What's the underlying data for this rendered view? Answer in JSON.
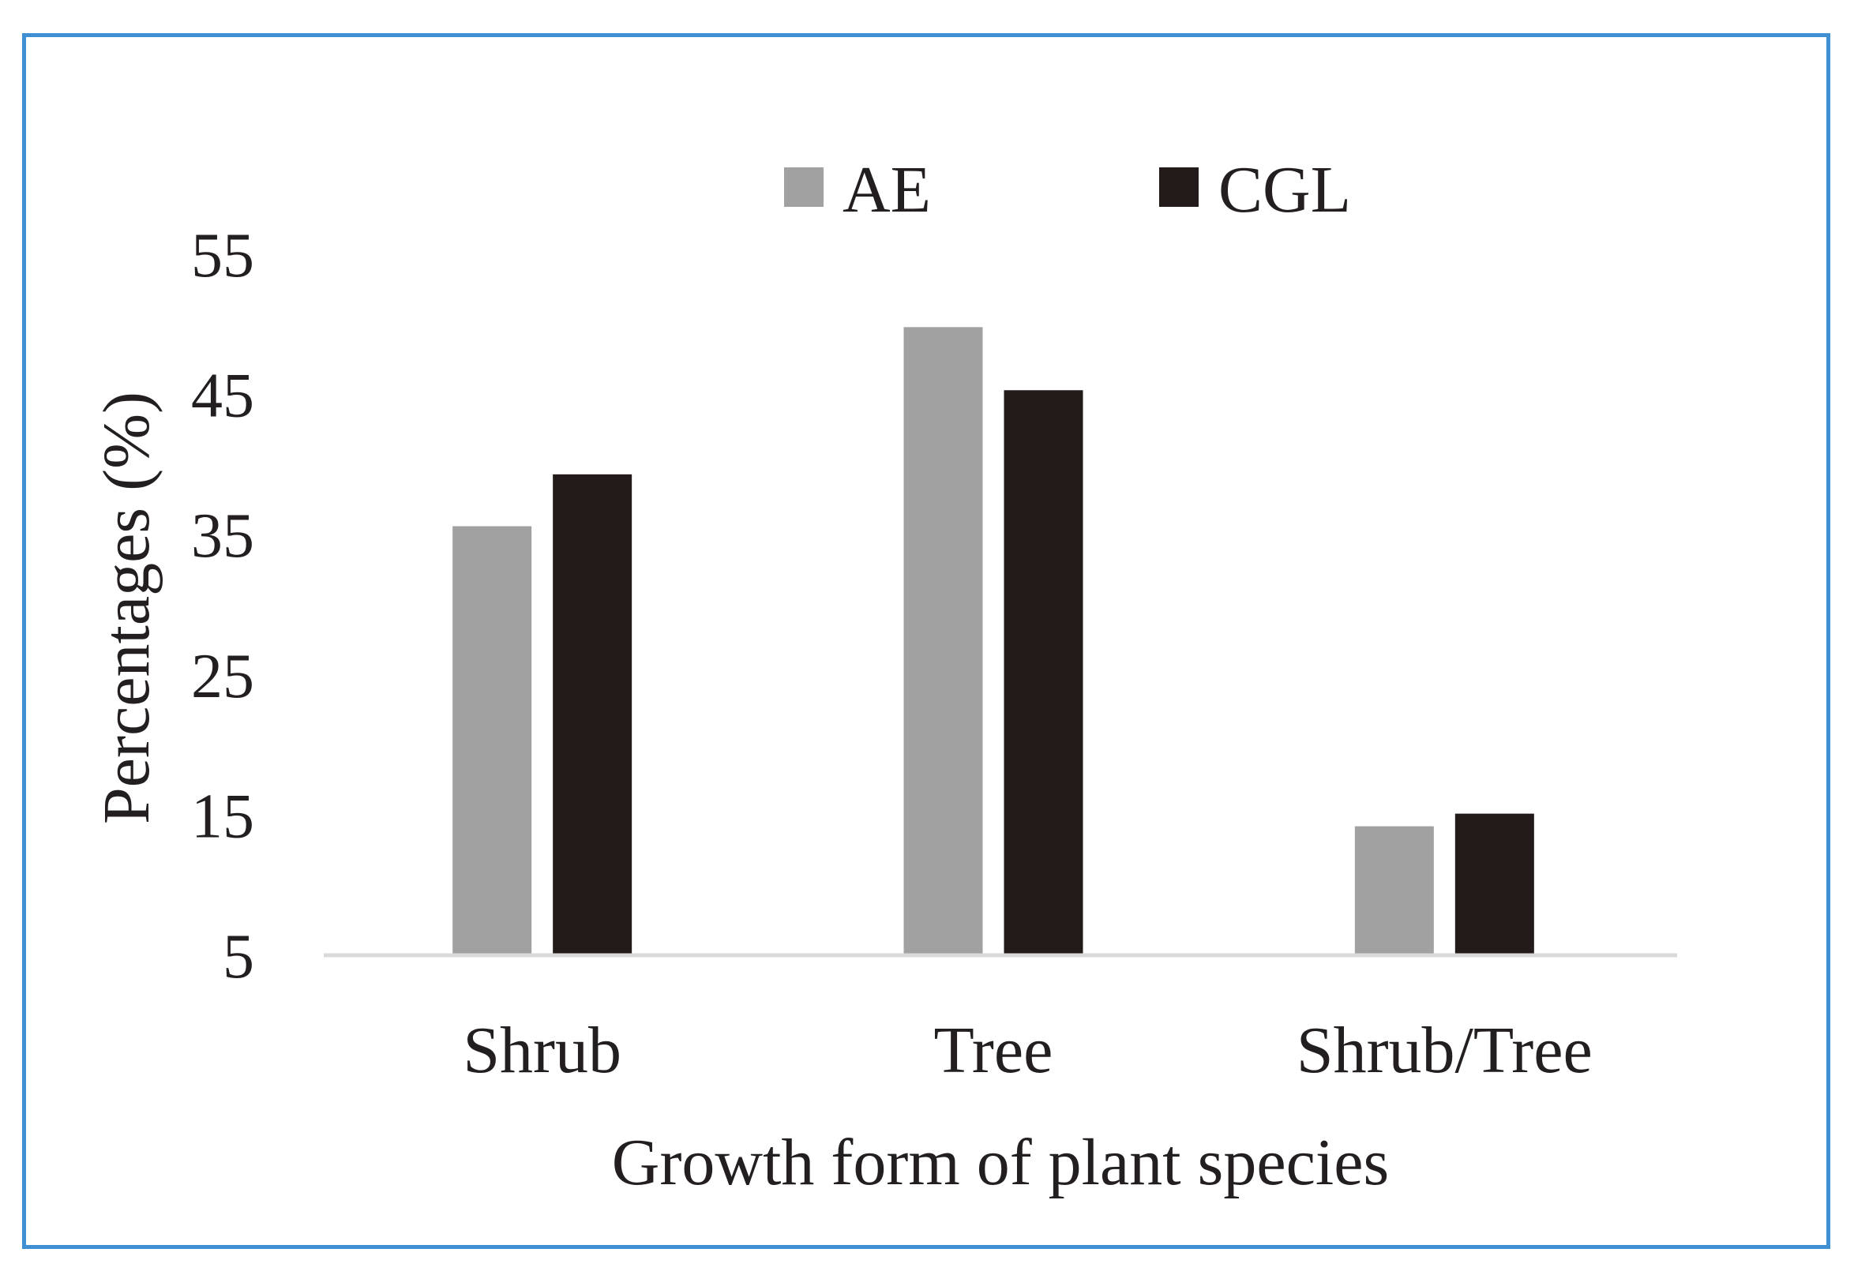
{
  "chart_data": {
    "type": "bar",
    "categories": [
      "Shrub",
      "Tree",
      "Shrub/Tree"
    ],
    "series": [
      {
        "name": "AE",
        "values": [
          35.6,
          49.8,
          14.2
        ],
        "color": "#a0a1a0"
      },
      {
        "name": "CGL",
        "values": [
          39.3,
          45.3,
          15.1
        ],
        "color": "#231a1a"
      }
    ],
    "xlabel": "Growth form of plant species",
    "ylabel": "Percentages (%)",
    "ylim": [
      5,
      55
    ],
    "yticks": [
      "5",
      "15",
      "25",
      "35",
      "45",
      "55"
    ],
    "grid": false,
    "legend_position": "top-center",
    "axis_line_color": "#d9d9d9",
    "frame_color": "#3f8fd2"
  }
}
